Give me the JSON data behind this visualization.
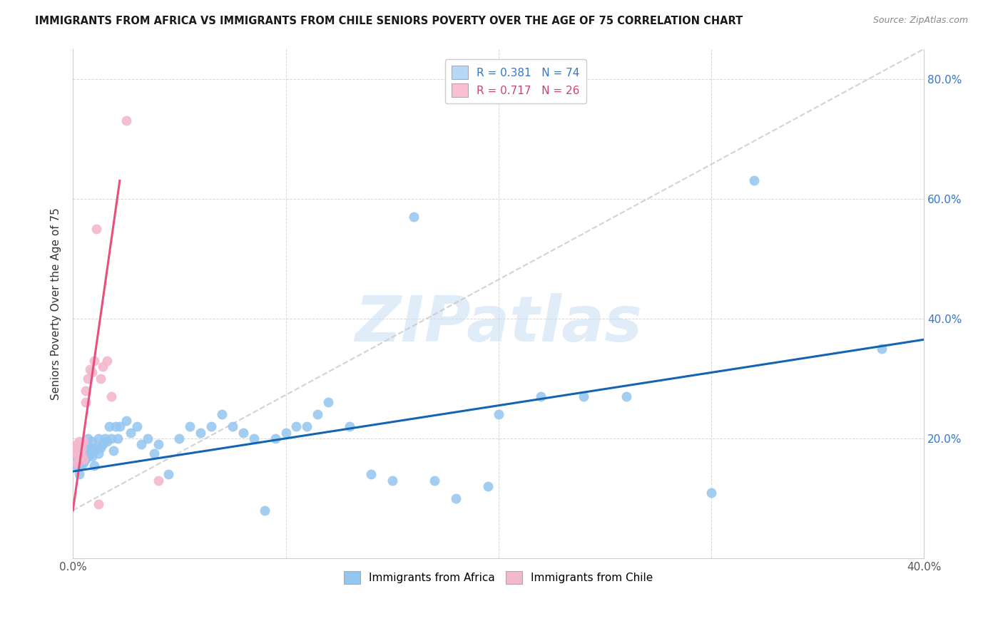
{
  "title": "IMMIGRANTS FROM AFRICA VS IMMIGRANTS FROM CHILE SENIORS POVERTY OVER THE AGE OF 75 CORRELATION CHART",
  "source": "Source: ZipAtlas.com",
  "ylabel": "Seniors Poverty Over the Age of 75",
  "xlim": [
    0.0,
    0.4
  ],
  "ylim": [
    0.0,
    0.85
  ],
  "x_tick_positions": [
    0.0,
    0.1,
    0.2,
    0.3,
    0.4
  ],
  "x_tick_labels": [
    "0.0%",
    "",
    "",
    "",
    "40.0%"
  ],
  "y_tick_positions": [
    0.0,
    0.2,
    0.4,
    0.6,
    0.8
  ],
  "y_tick_labels_right": [
    "",
    "20.0%",
    "40.0%",
    "60.0%",
    "80.0%"
  ],
  "watermark_text": "ZIPatlas",
  "africa_color": "#93c6f0",
  "africa_edge_color": "#93c6f0",
  "chile_color": "#f4b8ce",
  "chile_edge_color": "#f4b8ce",
  "africa_line_color": "#1464b4",
  "chile_line_color": "#e8507a",
  "gray_dash_color": "#c8c8c8",
  "background_color": "#ffffff",
  "grid_color": "#d8d8d8",
  "legend1_africa_color": "#b8d8f8",
  "legend1_chile_color": "#f8c0d0",
  "legend1_africa_text": "R = 0.381   N = 74",
  "legend1_chile_text": "R = 0.717   N = 26",
  "legend1_africa_text_color": "#3377cc",
  "legend1_chile_text_color": "#cc4477",
  "legend2_africa_label": "Immigrants from Africa",
  "legend2_chile_label": "Immigrants from Chile",
  "africa_R": 0.381,
  "africa_N": 74,
  "chile_R": 0.717,
  "chile_N": 26,
  "africa_points_x": [
    0.001,
    0.002,
    0.002,
    0.002,
    0.003,
    0.003,
    0.003,
    0.004,
    0.004,
    0.004,
    0.005,
    0.005,
    0.006,
    0.006,
    0.006,
    0.007,
    0.007,
    0.007,
    0.008,
    0.008,
    0.009,
    0.009,
    0.01,
    0.01,
    0.011,
    0.012,
    0.012,
    0.013,
    0.014,
    0.015,
    0.016,
    0.017,
    0.018,
    0.019,
    0.02,
    0.021,
    0.022,
    0.025,
    0.027,
    0.03,
    0.032,
    0.035,
    0.038,
    0.04,
    0.045,
    0.05,
    0.055,
    0.06,
    0.065,
    0.07,
    0.075,
    0.08,
    0.085,
    0.09,
    0.095,
    0.1,
    0.105,
    0.11,
    0.115,
    0.12,
    0.13,
    0.14,
    0.15,
    0.16,
    0.17,
    0.18,
    0.195,
    0.2,
    0.22,
    0.24,
    0.26,
    0.3,
    0.32,
    0.38
  ],
  "africa_points_y": [
    0.165,
    0.155,
    0.17,
    0.18,
    0.14,
    0.16,
    0.175,
    0.155,
    0.17,
    0.185,
    0.16,
    0.18,
    0.165,
    0.18,
    0.19,
    0.17,
    0.185,
    0.2,
    0.175,
    0.185,
    0.17,
    0.195,
    0.155,
    0.18,
    0.185,
    0.175,
    0.2,
    0.185,
    0.19,
    0.2,
    0.195,
    0.22,
    0.2,
    0.18,
    0.22,
    0.2,
    0.22,
    0.23,
    0.21,
    0.22,
    0.19,
    0.2,
    0.175,
    0.19,
    0.14,
    0.2,
    0.22,
    0.21,
    0.22,
    0.24,
    0.22,
    0.21,
    0.2,
    0.08,
    0.2,
    0.21,
    0.22,
    0.22,
    0.24,
    0.26,
    0.22,
    0.14,
    0.13,
    0.57,
    0.13,
    0.1,
    0.12,
    0.24,
    0.27,
    0.27,
    0.27,
    0.11,
    0.63,
    0.35
  ],
  "chile_points_x": [
    0.001,
    0.001,
    0.002,
    0.002,
    0.002,
    0.003,
    0.003,
    0.003,
    0.004,
    0.004,
    0.005,
    0.005,
    0.006,
    0.006,
    0.007,
    0.008,
    0.009,
    0.01,
    0.011,
    0.012,
    0.013,
    0.014,
    0.016,
    0.018,
    0.025,
    0.04
  ],
  "chile_points_y": [
    0.175,
    0.185,
    0.16,
    0.175,
    0.19,
    0.165,
    0.18,
    0.195,
    0.175,
    0.185,
    0.165,
    0.195,
    0.26,
    0.28,
    0.3,
    0.315,
    0.31,
    0.33,
    0.55,
    0.09,
    0.3,
    0.32,
    0.33,
    0.27,
    0.73,
    0.13
  ],
  "africa_trend_x": [
    0.0,
    0.4
  ],
  "africa_trend_y": [
    0.145,
    0.365
  ],
  "chile_trend_x": [
    0.0,
    0.022
  ],
  "chile_trend_y": [
    0.08,
    0.63
  ],
  "gray_dash_trend_x": [
    0.0,
    0.4
  ],
  "gray_dash_trend_y": [
    0.08,
    0.85
  ]
}
